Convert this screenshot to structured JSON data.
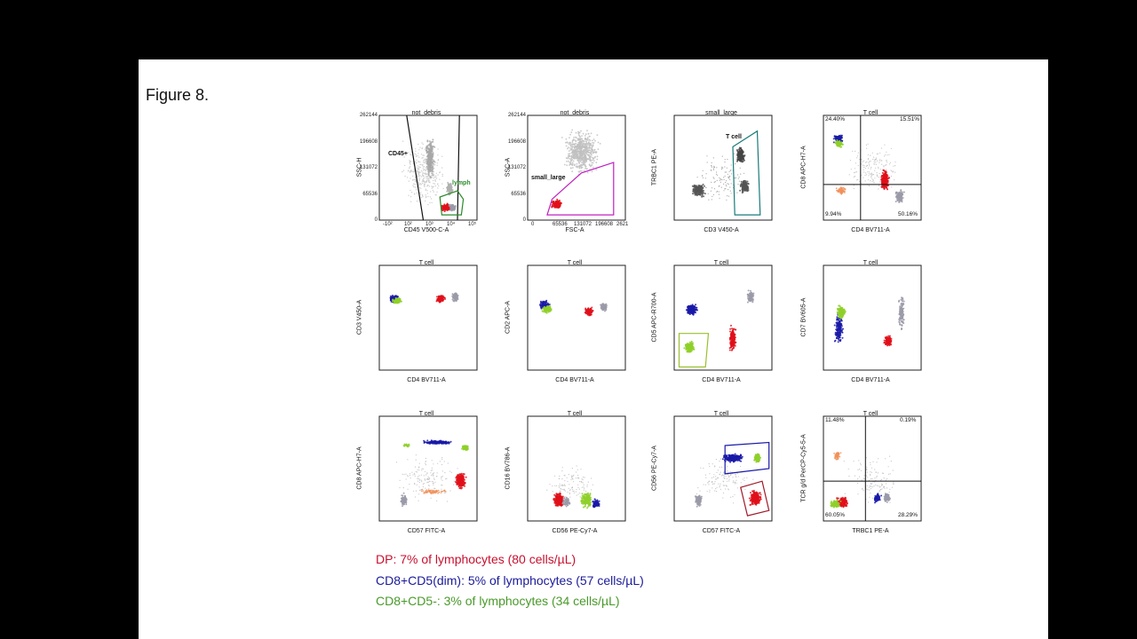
{
  "figure_label": "Figure 8.",
  "legend": [
    {
      "text": "DP: 7% of lymphocytes (80 cells/µL)",
      "color": "#c8102e"
    },
    {
      "text": "CD8+CD5(dim): 5% of lymphocytes (57 cells/µL)",
      "color": "#1a1a9a"
    },
    {
      "text": "CD8+CD5-: 3% of lymphocytes (34 cells/µL)",
      "color": "#4a9a2a"
    }
  ],
  "colors": {
    "dp": "#e0101a",
    "cd5dim": "#1a1aa8",
    "cd5neg": "#8fd02a",
    "background": "#9a9aa8",
    "orange": "#f0905a"
  },
  "chart_data": [
    {
      "type": "scatter",
      "title": "not_debris",
      "xlabel": "CD45 V500-C-A",
      "ylabel": "SSC-H",
      "yticks": [
        "262144",
        "196608",
        "131072",
        "65536",
        "0"
      ],
      "xticks": [
        "-10²",
        "10²",
        "10³",
        "10⁴",
        "10⁵"
      ],
      "gates": [
        "CD45+",
        "lymph"
      ]
    },
    {
      "type": "scatter",
      "title": "not_debris",
      "xlabel": "FSC-A",
      "ylabel": "SSC-A",
      "yticks": [
        "262144",
        "196608",
        "131072",
        "65536",
        "0"
      ],
      "xticks": [
        "0",
        "65536",
        "131072",
        "196608",
        "2621"
      ],
      "gates": [
        "small_large"
      ]
    },
    {
      "type": "scatter",
      "title": "small_large",
      "xlabel": "CD3 V450-A",
      "ylabel": "TRBC1 PE-A",
      "gates": [
        "T cell"
      ]
    },
    {
      "type": "scatter",
      "title": "T cell",
      "xlabel": "CD4 BV711-A",
      "ylabel": "CD8 APC-H7-A",
      "quadrants": {
        "top_left": "24.40%",
        "top_right": "15.51%",
        "bottom_left": "9.94%",
        "bottom_right": "50.16%"
      }
    },
    {
      "type": "scatter",
      "title": "T cell",
      "xlabel": "CD4 BV711-A",
      "ylabel": "CD3 V450-A"
    },
    {
      "type": "scatter",
      "title": "T cell",
      "xlabel": "CD4 BV711-A",
      "ylabel": "CD2 APC-A"
    },
    {
      "type": "scatter",
      "title": "T cell",
      "xlabel": "CD4 BV711-A",
      "ylabel": "CD5 APC-R700-A"
    },
    {
      "type": "scatter",
      "title": "T cell",
      "xlabel": "CD4 BV711-A",
      "ylabel": "CD7 BV605-A"
    },
    {
      "type": "scatter",
      "title": "T cell",
      "xlabel": "CD57 FITC-A",
      "ylabel": "CD8 APC-H7-A"
    },
    {
      "type": "scatter",
      "title": "T cell",
      "xlabel": "CD56 PE-Cy7-A",
      "ylabel": "CD16 BV786-A"
    },
    {
      "type": "scatter",
      "title": "T cell",
      "xlabel": "CD57 FITC-A",
      "ylabel": "CD56 PE-Cy7-A"
    },
    {
      "type": "scatter",
      "title": "T cell",
      "xlabel": "TRBC1 PE-A",
      "ylabel": "TCR g/d PerCP-Cy5-5-A",
      "quadrants": {
        "top_left": "11.48%",
        "top_right": "0.19%",
        "bottom_left": "60.05%",
        "bottom_right": "28.29%"
      }
    }
  ]
}
